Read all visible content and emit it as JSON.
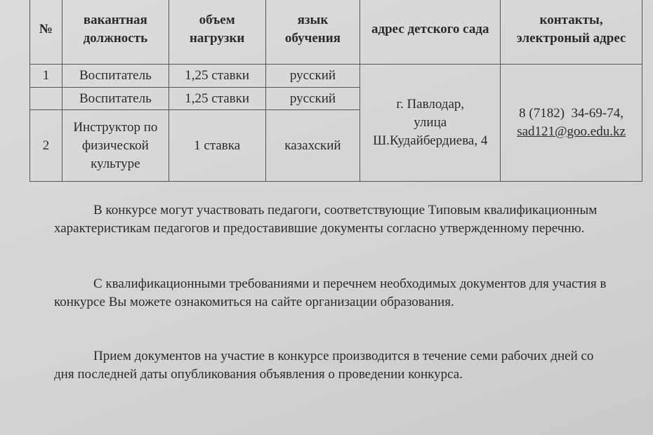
{
  "table": {
    "headers": [
      "№",
      "вакантная должность",
      "объем нагрузки",
      "язык обучения",
      "адрес детского сада",
      "контакты, электроный адрес"
    ],
    "rows": [
      {
        "num": "1",
        "position": "Воспитатель",
        "load": "1,25 ставки",
        "language": "русский"
      },
      {
        "num": "",
        "position": "Воспитатель",
        "load": "1,25 ставки",
        "language": "русский"
      },
      {
        "num": "2",
        "position": "Инструктор по физической культуре",
        "load": "1 ставка",
        "language": "казахский"
      }
    ],
    "address": [
      "г. Павлодар,",
      "улица",
      "Ш.Кудайбердиева, 4"
    ],
    "phone": "8 (7182)  34-69-74,",
    "email": "sad121@goo.edu.kz"
  },
  "paragraphs": [
    "В конкурсе могут участвовать педагоги, соответствующие Типовым квалификационным характеристикам педагогов и предоставившие документы согласно утвержденному перечню.",
    "С квалификационными требованиями и перечнем необходимых документов для участия в конкурсе Вы можете ознакомиться на сайте организации образования.",
    "Прием документов на участие в конкурсе производится в течение семи рабочих дней со дня последней даты опубликования объявления о проведении конкурса."
  ]
}
